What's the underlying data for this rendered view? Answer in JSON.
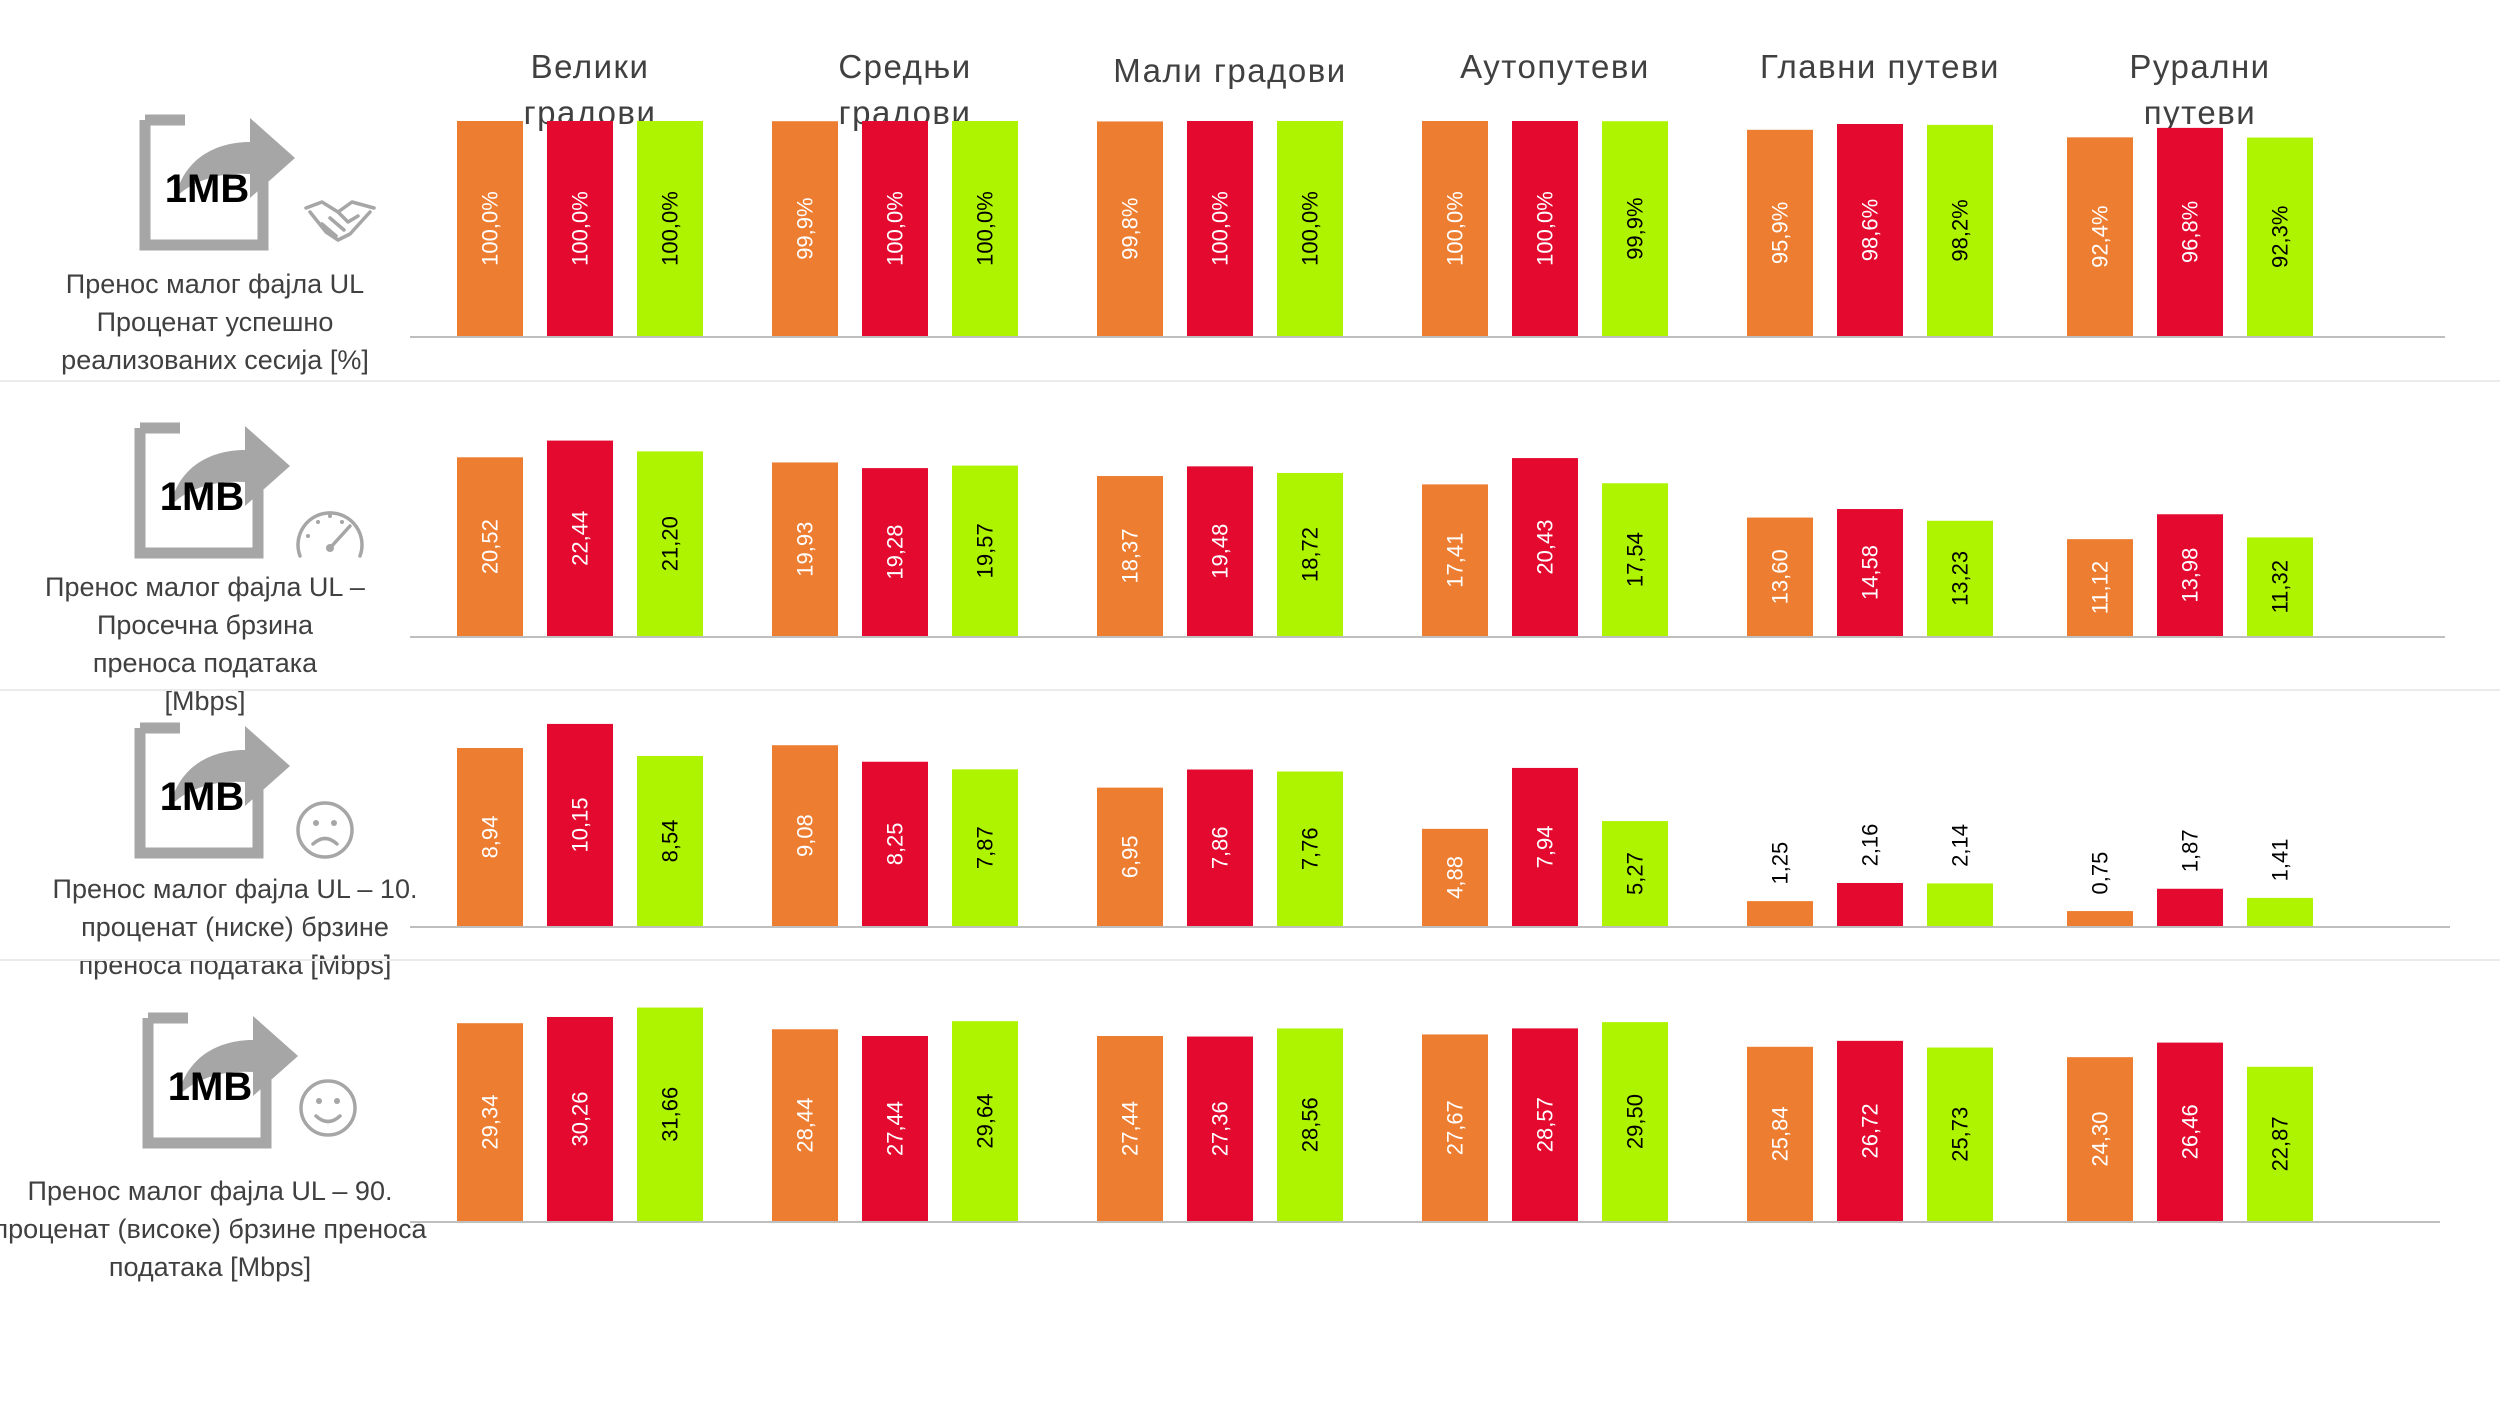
{
  "chart_data": {
    "type": "bar",
    "title": "",
    "categories": [
      [
        "Велики",
        "градови"
      ],
      [
        "Средњи",
        "градови"
      ],
      [
        "Мали градови"
      ],
      [
        "Аутопутеви"
      ],
      [
        "Главни путеви"
      ],
      [
        "Рурални",
        "путеви"
      ]
    ],
    "series_colors": [
      "#ED7D31",
      "#E3092F",
      "#AEF400"
    ],
    "panels": [
      {
        "icon_text": "1MB",
        "badge_icon": "handshake-icon",
        "label_lines": [
          "Пренос малог фајла  UL",
          "Проценат успешно",
          "реализованих сесија  [%]"
        ],
        "ylim": [
          0,
          100
        ],
        "values": [
          [
            "100,0%",
            "100,0%",
            "100,0%"
          ],
          [
            "99,9%",
            "100,0%",
            "100,0%"
          ],
          [
            "99,8%",
            "100,0%",
            "100,0%"
          ],
          [
            "100,0%",
            "100,0%",
            "99,9%"
          ],
          [
            "95,9%",
            "98,6%",
            "98,2%"
          ],
          [
            "92,4%",
            "96,8%",
            "92,3%"
          ]
        ]
      },
      {
        "icon_text": "1MB",
        "badge_icon": "speedometer-icon",
        "label_lines": [
          "Пренос  малог фајла UL –",
          "Просечна брзина",
          "преноса података",
          "[Mbps]"
        ],
        "ylim": [
          0,
          24
        ],
        "values": [
          [
            "20,52",
            "22,44",
            "21,20"
          ],
          [
            "19,93",
            "19,28",
            "19,57"
          ],
          [
            "18,37",
            "19,48",
            "18,72"
          ],
          [
            "17,41",
            "20,43",
            "17,54"
          ],
          [
            "13,60",
            "14,58",
            "13,23"
          ],
          [
            "11,12",
            "13,98",
            "11,32"
          ]
        ]
      },
      {
        "icon_text": "1MB",
        "badge_icon": "sad-face-icon",
        "label_lines": [
          "Пренос малог фајла   UL – 10.",
          "проценат (ниске) брзине",
          "преноса података [Mbps]"
        ],
        "ylim": [
          0,
          11
        ],
        "values": [
          [
            "8,94",
            "10,15",
            "8,54"
          ],
          [
            "9,08",
            "8,25",
            "7,87"
          ],
          [
            "6,95",
            "7,86",
            "7,76"
          ],
          [
            "4,88",
            "7,94",
            "5,27"
          ],
          [
            "1,25",
            "2,16",
            "2,14"
          ],
          [
            "0,75",
            "1,87",
            "1,41"
          ]
        ]
      },
      {
        "icon_text": "1MB",
        "badge_icon": "smiley-face-icon",
        "label_lines": [
          "Пренос малог фајла   UL – 90.",
          "проценат (високе) брзине преноса",
          "података [Mbps]"
        ],
        "ylim": [
          0,
          31
        ],
        "values": [
          [
            "29,34",
            "30,26",
            "31,66"
          ],
          [
            "28,44",
            "27,44",
            "29,64"
          ],
          [
            "27,44",
            "27,36",
            "28,56"
          ],
          [
            "27,67",
            "28,57",
            "29,50"
          ],
          [
            "25,84",
            "26,72",
            "25,73"
          ],
          [
            "24,30",
            "26,46",
            "22,87"
          ]
        ]
      }
    ]
  }
}
